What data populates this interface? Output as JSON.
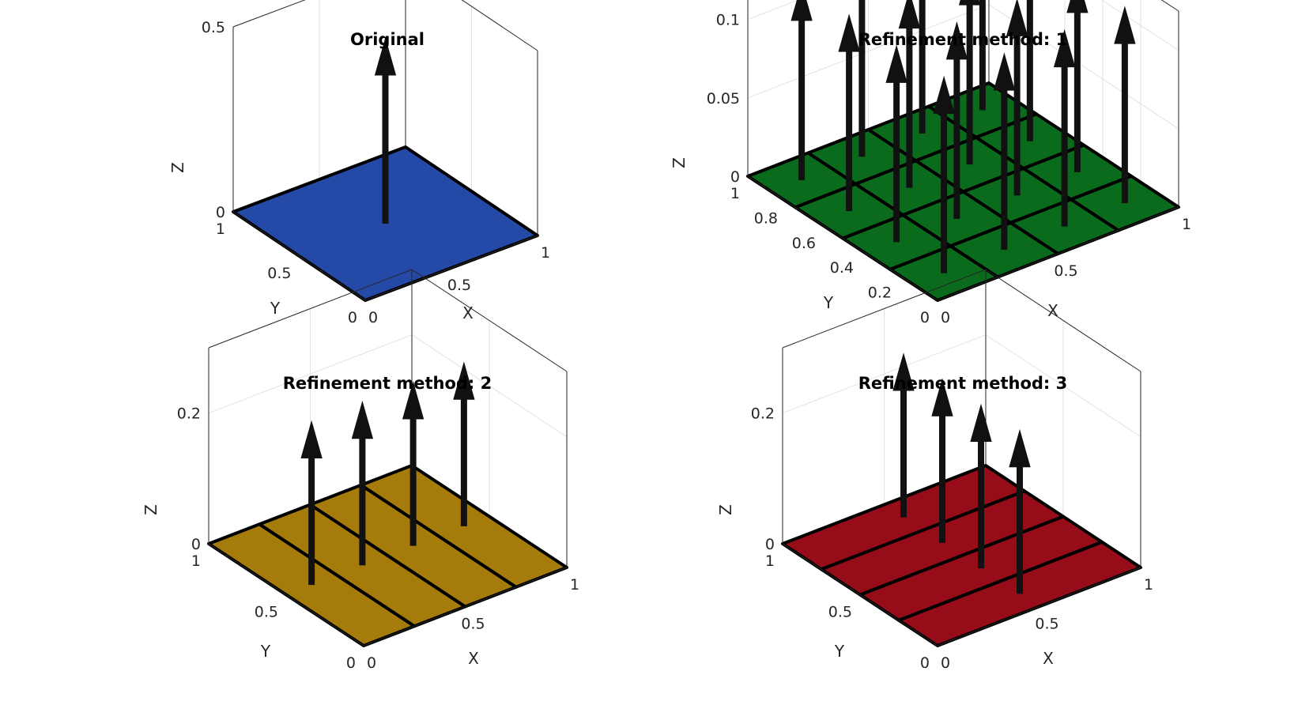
{
  "chart_data": [
    {
      "type": "surface3d",
      "title": "Original",
      "xlabel": "X",
      "ylabel": "Y",
      "zlabel": "Z",
      "xlim": [
        0,
        1
      ],
      "ylim": [
        0,
        1
      ],
      "zlim": [
        0,
        0.5
      ],
      "xticks": [
        0,
        0.5,
        1
      ],
      "xtick_labels": [
        "0",
        "0.5",
        "1"
      ],
      "yticks": [
        0,
        0.5,
        1
      ],
      "ytick_labels": [
        "0",
        "0.5",
        "1"
      ],
      "zticks": [
        0,
        0.5
      ],
      "ztick_labels": [
        "0",
        "0.5"
      ],
      "grid": true,
      "face_color": "#2549a6",
      "faces": [
        [
          0,
          1,
          0,
          1
        ]
      ],
      "normals": [
        {
          "x": 0.5,
          "y": 0.5,
          "length": 0.5
        }
      ]
    },
    {
      "type": "surface3d",
      "title": "Refinement method: 1",
      "xlabel": "X",
      "ylabel": "Y",
      "zlabel": "Z",
      "xlim": [
        0,
        1
      ],
      "ylim": [
        0,
        1
      ],
      "zlim": [
        0,
        0.125
      ],
      "xticks": [
        0,
        0.5,
        1
      ],
      "xtick_labels": [
        "0",
        "0.5",
        "1"
      ],
      "yticks": [
        0,
        0.2,
        0.4,
        0.6,
        0.8,
        1
      ],
      "ytick_labels": [
        "0",
        "0.2",
        "0.4",
        "0.6",
        "0.8",
        "1"
      ],
      "zticks": [
        0,
        0.05,
        0.1
      ],
      "ztick_labels": [
        "0",
        "0.05",
        "0.1"
      ],
      "grid": true,
      "face_color": "#0b6b1c",
      "faces": [
        [
          0,
          0.25,
          0,
          0.25
        ],
        [
          0.25,
          0.5,
          0,
          0.25
        ],
        [
          0.5,
          0.75,
          0,
          0.25
        ],
        [
          0.75,
          1,
          0,
          0.25
        ],
        [
          0,
          0.25,
          0.25,
          0.5
        ],
        [
          0.25,
          0.5,
          0.25,
          0.5
        ],
        [
          0.5,
          0.75,
          0.25,
          0.5
        ],
        [
          0.75,
          1,
          0.25,
          0.5
        ],
        [
          0,
          0.25,
          0.5,
          0.75
        ],
        [
          0.25,
          0.5,
          0.5,
          0.75
        ],
        [
          0.5,
          0.75,
          0.5,
          0.75
        ],
        [
          0.75,
          1,
          0.5,
          0.75
        ],
        [
          0,
          0.25,
          0.75,
          1
        ],
        [
          0.25,
          0.5,
          0.75,
          1
        ],
        [
          0.5,
          0.75,
          0.75,
          1
        ],
        [
          0.75,
          1,
          0.75,
          1
        ]
      ],
      "normals": [
        {
          "x": 0.125,
          "y": 0.125,
          "length": 0.125
        },
        {
          "x": 0.375,
          "y": 0.125,
          "length": 0.125
        },
        {
          "x": 0.625,
          "y": 0.125,
          "length": 0.125
        },
        {
          "x": 0.875,
          "y": 0.125,
          "length": 0.125
        },
        {
          "x": 0.125,
          "y": 0.375,
          "length": 0.125
        },
        {
          "x": 0.375,
          "y": 0.375,
          "length": 0.125
        },
        {
          "x": 0.625,
          "y": 0.375,
          "length": 0.125
        },
        {
          "x": 0.875,
          "y": 0.375,
          "length": 0.125
        },
        {
          "x": 0.125,
          "y": 0.625,
          "length": 0.125
        },
        {
          "x": 0.375,
          "y": 0.625,
          "length": 0.125
        },
        {
          "x": 0.625,
          "y": 0.625,
          "length": 0.125
        },
        {
          "x": 0.875,
          "y": 0.625,
          "length": 0.125
        },
        {
          "x": 0.125,
          "y": 0.875,
          "length": 0.125
        },
        {
          "x": 0.375,
          "y": 0.875,
          "length": 0.125
        },
        {
          "x": 0.625,
          "y": 0.875,
          "length": 0.125
        },
        {
          "x": 0.875,
          "y": 0.875,
          "length": 0.125
        }
      ]
    },
    {
      "type": "surface3d",
      "title": "Refinement method: 2",
      "xlabel": "X",
      "ylabel": "Y",
      "zlabel": "Z",
      "xlim": [
        0,
        1
      ],
      "ylim": [
        0,
        1
      ],
      "zlim": [
        0,
        0.3
      ],
      "xticks": [
        0,
        0.5,
        1
      ],
      "xtick_labels": [
        "0",
        "0.5",
        "1"
      ],
      "yticks": [
        0,
        0.5,
        1
      ],
      "ytick_labels": [
        "0",
        "0.5",
        "1"
      ],
      "zticks": [
        0,
        0.2
      ],
      "ztick_labels": [
        "0",
        "0.2"
      ],
      "grid": true,
      "face_color": "#a57c0b",
      "faces": [
        [
          0,
          0.25,
          0,
          1
        ],
        [
          0.25,
          0.5,
          0,
          1
        ],
        [
          0.5,
          0.75,
          0,
          1
        ],
        [
          0.75,
          1,
          0,
          1
        ]
      ],
      "normals": [
        {
          "x": 0.125,
          "y": 0.5,
          "length": 0.25
        },
        {
          "x": 0.375,
          "y": 0.5,
          "length": 0.25
        },
        {
          "x": 0.625,
          "y": 0.5,
          "length": 0.25
        },
        {
          "x": 0.875,
          "y": 0.5,
          "length": 0.25
        }
      ]
    },
    {
      "type": "surface3d",
      "title": "Refinement method: 3",
      "xlabel": "X",
      "ylabel": "Y",
      "zlabel": "Z",
      "xlim": [
        0,
        1
      ],
      "ylim": [
        0,
        1
      ],
      "zlim": [
        0,
        0.3
      ],
      "xticks": [
        0,
        0.5,
        1
      ],
      "xtick_labels": [
        "0",
        "0.5",
        "1"
      ],
      "yticks": [
        0,
        0.5,
        1
      ],
      "ytick_labels": [
        "0",
        "0.5",
        "1"
      ],
      "zticks": [
        0,
        0.2
      ],
      "ztick_labels": [
        "0",
        "0.2"
      ],
      "grid": true,
      "face_color": "#960c18",
      "faces": [
        [
          0,
          1,
          0,
          0.25
        ],
        [
          0,
          1,
          0.25,
          0.5
        ],
        [
          0,
          1,
          0.5,
          0.75
        ],
        [
          0,
          1,
          0.75,
          1
        ]
      ],
      "normals": [
        {
          "x": 0.5,
          "y": 0.125,
          "length": 0.25
        },
        {
          "x": 0.5,
          "y": 0.375,
          "length": 0.25
        },
        {
          "x": 0.5,
          "y": 0.625,
          "length": 0.25
        },
        {
          "x": 0.5,
          "y": 0.875,
          "length": 0.25
        }
      ]
    }
  ]
}
